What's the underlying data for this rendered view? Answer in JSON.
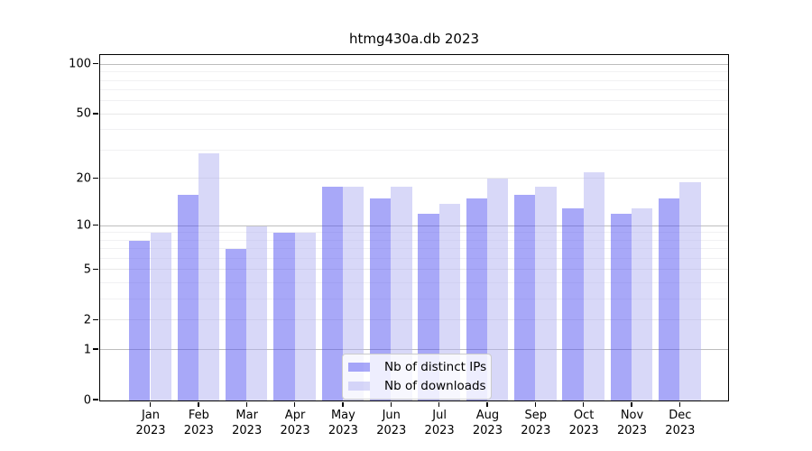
{
  "chart_data": {
    "type": "bar",
    "title": "htmg430a.db 2023",
    "categories": [
      "Jan 2023",
      "Feb 2023",
      "Mar 2023",
      "Apr 2023",
      "May 2023",
      "Jun 2023",
      "Jul 2023",
      "Aug 2023",
      "Sep 2023",
      "Oct 2023",
      "Nov 2023",
      "Dec 2023"
    ],
    "series": [
      {
        "name": "Nb of distinct IPs",
        "color": "#a8a8f8",
        "fill": "rgba(82,82,242,0.5)",
        "values": [
          8,
          16,
          7,
          9,
          18,
          15,
          12,
          15,
          16,
          13,
          12,
          15
        ]
      },
      {
        "name": "Nb of downloads",
        "color": "#d8d8f8",
        "fill": "rgba(178,178,242,0.5)",
        "values": [
          9,
          29,
          10,
          9,
          18,
          18,
          14,
          20,
          18,
          22,
          13,
          19
        ]
      }
    ],
    "yscale": "log1p",
    "ylim": [
      0,
      113
    ],
    "yticks": [
      0,
      1,
      2,
      5,
      10,
      20,
      50,
      100
    ],
    "minor_gridlines": [
      3,
      4,
      6,
      7,
      8,
      9,
      30,
      40,
      60,
      70,
      80,
      90
    ],
    "grid": "on",
    "legend_position": "lower center",
    "xlabel": "",
    "ylabel": ""
  },
  "styles": {
    "decade_grid_color": "#bdbdbd",
    "mid_grid_color": "#e8e8e8",
    "minor_grid_color": "#f1f1f3",
    "axis_color": "#000000",
    "background": "#ffffff"
  }
}
